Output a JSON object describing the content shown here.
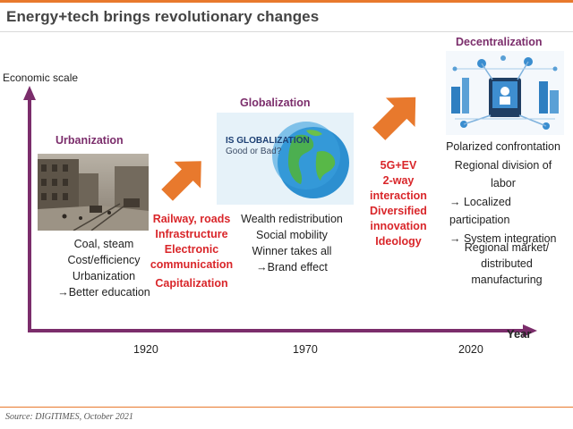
{
  "title": "Energy+tech brings revolutionary changes",
  "axes": {
    "y_label": "Economic scale",
    "x_label": "Year"
  },
  "stages": [
    {
      "name": "Urbanization",
      "bullets": [
        "Coal, steam",
        "Cost/efficiency",
        "Urbanization",
        "→Better education"
      ]
    },
    {
      "name": "Globalization",
      "image_caption_1": "IS GLOBALIZATION",
      "image_caption_2": "Good or Bad?",
      "bullets": [
        "Wealth redistribution",
        "Social mobility",
        "Winner takes all",
        "→Brand effect"
      ]
    },
    {
      "name": "Decentralization",
      "bullets": [
        "Polarized confrontation",
        "Regional division of labor",
        "→ Localized participation",
        "→ System integration"
      ],
      "note": [
        "Regional market/",
        "distributed",
        "manufacturing"
      ]
    }
  ],
  "drivers": [
    {
      "lines": [
        "Railway, roads",
        "Infrastructure",
        "Electronic",
        "communication"
      ],
      "extra": "Capitalization"
    },
    {
      "lines": [
        "5G+EV",
        "2-way",
        "interaction",
        "Diversified",
        "innovation",
        "Ideology"
      ]
    }
  ],
  "years": [
    "1920",
    "1970",
    "2020"
  ],
  "colors": {
    "axis": "#7b2d6b",
    "arrow": "#e8792d",
    "driver_text": "#d9262a",
    "rule": "#e8792d"
  },
  "source": "Source: DIGITIMES, October 2021"
}
